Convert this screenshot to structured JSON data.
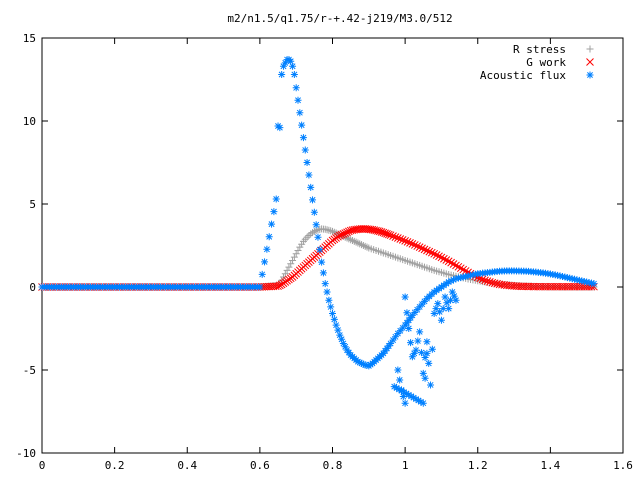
{
  "chart_data": {
    "type": "scatter",
    "title": "m2/n1.5/q1.75/r-+.42-j219/M3.0/512",
    "xlabel": "",
    "ylabel": "",
    "xlim": [
      0,
      1.6
    ],
    "ylim": [
      -10,
      15
    ],
    "x_ticks": [
      "0",
      "0.2",
      "0.4",
      "0.6",
      "0.8",
      "1",
      "1.2",
      "1.4",
      "1.6"
    ],
    "y_ticks": [
      "15",
      "10",
      "5",
      "0",
      "-5",
      "-10"
    ],
    "x_tick_values": [
      0,
      0.2,
      0.4,
      0.6,
      0.8,
      1.0,
      1.2,
      1.4,
      1.6
    ],
    "y_tick_values": [
      15,
      10,
      5,
      0,
      -5,
      -10
    ],
    "grid": false,
    "legend_position": "top-right",
    "series": [
      {
        "name": "R stress",
        "marker": "plus",
        "color": "#a0a0a0",
        "x": [
          0.0,
          0.1,
          0.2,
          0.3,
          0.4,
          0.5,
          0.6,
          0.65,
          0.66,
          0.67,
          0.68,
          0.69,
          0.7,
          0.71,
          0.72,
          0.73,
          0.74,
          0.75,
          0.76,
          0.77,
          0.78,
          0.79,
          0.8,
          0.81,
          0.82,
          0.83,
          0.84,
          0.85,
          0.86,
          0.87,
          0.88,
          0.89,
          0.9,
          0.92,
          0.94,
          0.96,
          0.98,
          1.0,
          1.02,
          1.04,
          1.06,
          1.08,
          1.1,
          1.12,
          1.14,
          1.16,
          1.18,
          1.2,
          1.22,
          1.24,
          1.26,
          1.28,
          1.3,
          1.32,
          1.34,
          1.36,
          1.38,
          1.4,
          1.42,
          1.44,
          1.46,
          1.48,
          1.5,
          1.52
        ],
        "y": [
          0,
          0,
          0,
          0,
          0,
          0,
          0,
          0.1,
          0.4,
          0.8,
          1.2,
          1.6,
          2.0,
          2.4,
          2.75,
          3.0,
          3.2,
          3.35,
          3.45,
          3.5,
          3.48,
          3.42,
          3.35,
          3.25,
          3.15,
          3.05,
          2.95,
          2.85,
          2.75,
          2.65,
          2.55,
          2.45,
          2.35,
          2.2,
          2.05,
          1.9,
          1.75,
          1.6,
          1.45,
          1.3,
          1.15,
          1.0,
          0.88,
          0.75,
          0.65,
          0.55,
          0.45,
          0.38,
          0.3,
          0.24,
          0.18,
          0.14,
          0.1,
          0.07,
          0.05,
          0.03,
          0.02,
          0.01,
          0.01,
          0,
          0,
          0,
          0,
          0
        ]
      },
      {
        "name": "G work",
        "marker": "cross",
        "color": "#ff0000",
        "x": [
          0.0,
          0.1,
          0.2,
          0.3,
          0.4,
          0.5,
          0.6,
          0.65,
          0.66,
          0.67,
          0.68,
          0.69,
          0.7,
          0.71,
          0.72,
          0.73,
          0.74,
          0.75,
          0.76,
          0.77,
          0.78,
          0.79,
          0.8,
          0.81,
          0.82,
          0.83,
          0.84,
          0.85,
          0.86,
          0.87,
          0.88,
          0.89,
          0.9,
          0.91,
          0.92,
          0.93,
          0.94,
          0.95,
          0.96,
          0.98,
          1.0,
          1.02,
          1.04,
          1.06,
          1.08,
          1.1,
          1.12,
          1.14,
          1.16,
          1.18,
          1.2,
          1.22,
          1.24,
          1.26,
          1.28,
          1.3,
          1.32,
          1.34,
          1.36,
          1.38,
          1.4,
          1.42,
          1.44,
          1.46,
          1.48,
          1.5,
          1.52
        ],
        "y": [
          0,
          0,
          0,
          0,
          0,
          0,
          0,
          0.05,
          0.15,
          0.3,
          0.45,
          0.6,
          0.8,
          1.0,
          1.2,
          1.4,
          1.6,
          1.8,
          2.0,
          2.2,
          2.4,
          2.6,
          2.8,
          2.95,
          3.1,
          3.2,
          3.3,
          3.4,
          3.45,
          3.48,
          3.5,
          3.5,
          3.48,
          3.45,
          3.4,
          3.35,
          3.28,
          3.2,
          3.12,
          2.95,
          2.78,
          2.6,
          2.4,
          2.2,
          2.0,
          1.78,
          1.55,
          1.3,
          1.05,
          0.8,
          0.58,
          0.4,
          0.26,
          0.16,
          0.1,
          0.06,
          0.04,
          0.03,
          0.02,
          0.02,
          0.02,
          0.02,
          0.02,
          0.02,
          0.02,
          0.02,
          0.02
        ]
      },
      {
        "name": "Acoustic flux",
        "marker": "star",
        "color": "#0080ff",
        "x": [
          0.0,
          0.1,
          0.2,
          0.3,
          0.4,
          0.5,
          0.6,
          0.645,
          0.65,
          0.655,
          0.66,
          0.665,
          0.67,
          0.675,
          0.68,
          0.685,
          0.69,
          0.695,
          0.7,
          0.71,
          0.72,
          0.73,
          0.74,
          0.75,
          0.76,
          0.77,
          0.78,
          0.79,
          0.8,
          0.81,
          0.82,
          0.83,
          0.84,
          0.85,
          0.86,
          0.87,
          0.88,
          0.89,
          0.9,
          0.91,
          0.92,
          0.93,
          0.94,
          0.95,
          0.96,
          0.98,
          1.0,
          1.01,
          1.02,
          1.04,
          1.06,
          1.08,
          1.1,
          1.12,
          1.14,
          1.16,
          1.18,
          1.2,
          1.22,
          1.24,
          1.26,
          1.28,
          1.3,
          1.32,
          1.34,
          1.36,
          1.38,
          1.4,
          1.42,
          1.44,
          1.46,
          1.48,
          1.5,
          1.52,
          0.98,
          0.99,
          1.0,
          1.0,
          1.01,
          1.02,
          1.03,
          1.04,
          1.05,
          1.06,
          1.07,
          1.08,
          1.09,
          1.1,
          1.11,
          1.12,
          1.13,
          1.14,
          0.97,
          1.05,
          1.06
        ],
        "y": [
          0,
          0,
          0,
          0,
          0,
          0,
          0,
          5.3,
          9.7,
          9.6,
          12.8,
          13.3,
          13.5,
          13.7,
          13.7,
          13.6,
          13.3,
          12.8,
          12.0,
          10.5,
          9.0,
          7.5,
          6.0,
          4.5,
          3.0,
          1.5,
          0.2,
          -0.8,
          -1.6,
          -2.3,
          -2.9,
          -3.4,
          -3.8,
          -4.1,
          -4.3,
          -4.5,
          -4.6,
          -4.7,
          -4.75,
          -4.6,
          -4.4,
          -4.2,
          -4.0,
          -3.7,
          -3.4,
          -2.8,
          -2.3,
          -2.0,
          -1.7,
          -1.2,
          -0.7,
          -0.3,
          0,
          0.3,
          0.5,
          0.6,
          0.7,
          0.8,
          0.85,
          0.9,
          0.95,
          0.97,
          0.97,
          0.96,
          0.94,
          0.9,
          0.85,
          0.78,
          0.7,
          0.6,
          0.5,
          0.4,
          0.3,
          0.2,
          -5.0,
          -6.2,
          -7.0,
          -0.6,
          -2.5,
          -4.2,
          -3.8,
          -2.7,
          -5.2,
          -3.3,
          -5.9,
          -1.6,
          -1.0,
          -2.0,
          -0.6,
          -1.3,
          -0.3,
          -0.8,
          -6.0,
          -7.0,
          -4.0
        ]
      }
    ]
  }
}
